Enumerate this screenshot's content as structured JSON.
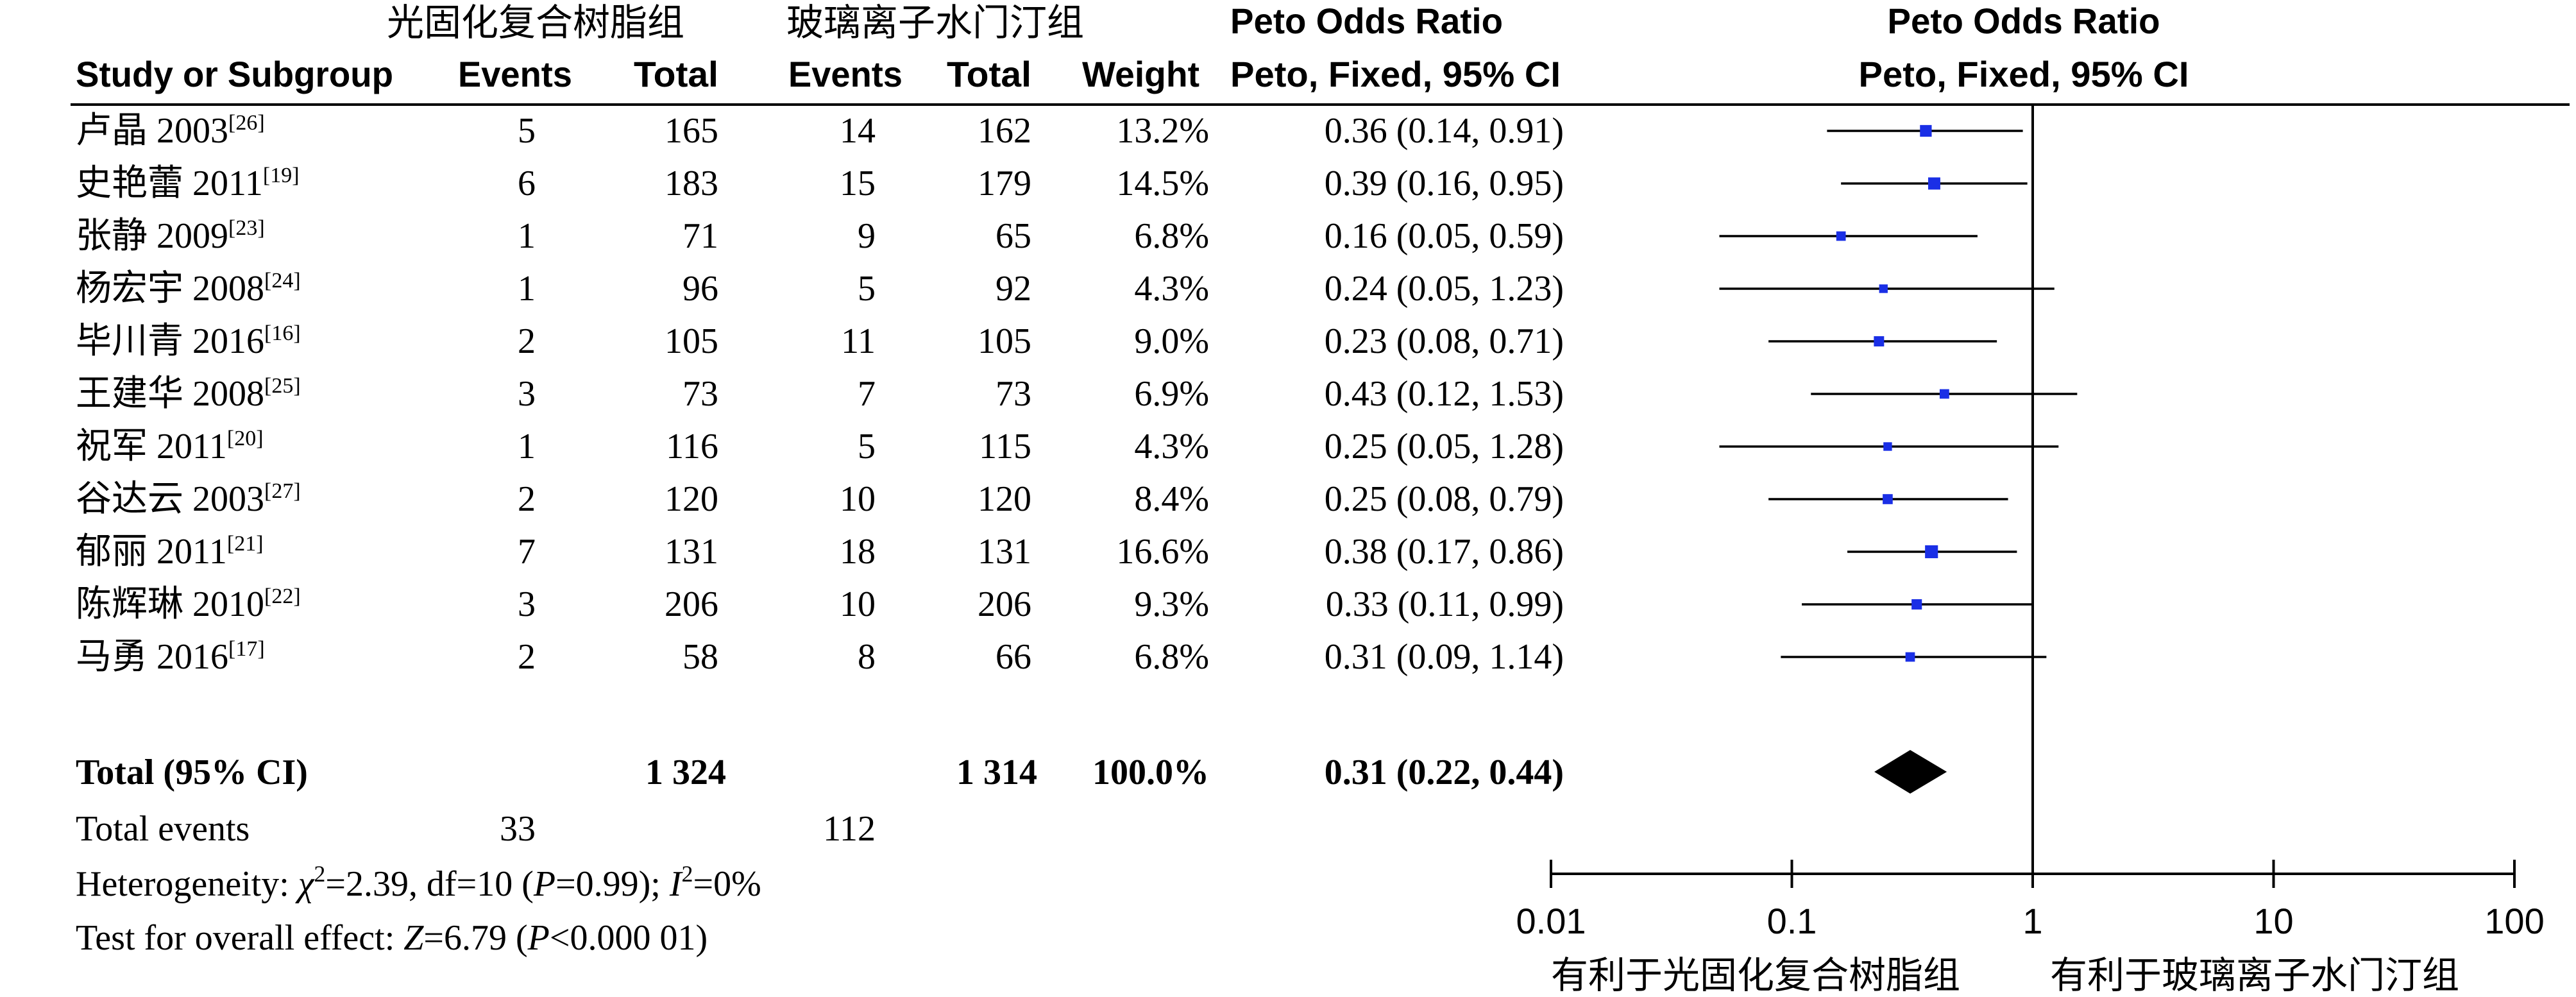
{
  "headers": {
    "group1": "光固化复合树脂组",
    "group2": "玻璃离子水门汀组",
    "or_title": "Peto Odds Ratio",
    "or_sub": "Peto, Fixed, 95% CI",
    "plot_title": "Peto Odds Ratio",
    "plot_sub": "Peto, Fixed, 95% CI",
    "study": "Study or Subgroup",
    "events1": "Events",
    "total1": "Total",
    "events2": "Events",
    "total2": "Total",
    "weight": "Weight"
  },
  "total_row": {
    "label": "Total (95% CI)",
    "total1": "1 324",
    "total2": "1 314",
    "weight": "100.0%",
    "ci_text": "0.31 (0.22, 0.44)"
  },
  "total_events": {
    "label": "Total events",
    "events1": "33",
    "events2": "112"
  },
  "heterogeneity": {
    "p1": "Heterogeneity: ",
    "chi": "χ",
    "chi_sup": "2",
    "p2": "=2.39, df=10 (",
    "P": "P",
    "p3": "=0.99); ",
    "I": "I",
    "I_sup": "2",
    "p4": "=0%"
  },
  "overall": {
    "p1": "Test for overall effect: ",
    "Z": "Z",
    "p2": "=6.79 (",
    "P": "P",
    "p3": "<0.000 01)"
  },
  "axis_labels": {
    "left": "有利于光固化复合树脂组",
    "right": "有利于玻璃离子水门汀组"
  },
  "chart_data": {
    "type": "forest",
    "scale": "log",
    "xlim": [
      0.01,
      100
    ],
    "ticks": [
      {
        "value": 0.01,
        "label": "0.01"
      },
      {
        "value": 0.1,
        "label": "0.1"
      },
      {
        "value": 1,
        "label": "1"
      },
      {
        "value": 10,
        "label": "10"
      },
      {
        "value": 100,
        "label": "100"
      }
    ],
    "studies": [
      {
        "name": "卢晶 2003",
        "ref": "[26]",
        "events1": "5",
        "total1": "165",
        "events2": "14",
        "total2": "162",
        "weight_label": "13.2%",
        "or": 0.36,
        "lo": 0.14,
        "hi": 0.91,
        "ci_text": "0.36 (0.14, 0.91)"
      },
      {
        "name": "史艳蕾 2011",
        "ref": "[19]",
        "events1": "6",
        "total1": "183",
        "events2": "15",
        "total2": "179",
        "weight_label": "14.5%",
        "or": 0.39,
        "lo": 0.16,
        "hi": 0.95,
        "ci_text": "0.39 (0.16, 0.95)"
      },
      {
        "name": "张静 2009",
        "ref": "[23]",
        "events1": "1",
        "total1": "71",
        "events2": "9",
        "total2": "65",
        "weight_label": "6.8%",
        "or": 0.16,
        "lo": 0.05,
        "hi": 0.59,
        "ci_text": "0.16 (0.05, 0.59)"
      },
      {
        "name": "杨宏宇 2008",
        "ref": "[24]",
        "events1": "1",
        "total1": "96",
        "events2": "5",
        "total2": "92",
        "weight_label": "4.3%",
        "or": 0.24,
        "lo": 0.05,
        "hi": 1.23,
        "ci_text": "0.24 (0.05, 1.23)"
      },
      {
        "name": "毕川青 2016",
        "ref": "[16]",
        "events1": "2",
        "total1": "105",
        "events2": "11",
        "total2": "105",
        "weight_label": "9.0%",
        "or": 0.23,
        "lo": 0.08,
        "hi": 0.71,
        "ci_text": "0.23 (0.08, 0.71)"
      },
      {
        "name": "王建华 2008",
        "ref": "[25]",
        "events1": "3",
        "total1": "73",
        "events2": "7",
        "total2": "73",
        "weight_label": "6.9%",
        "or": 0.43,
        "lo": 0.12,
        "hi": 1.53,
        "ci_text": "0.43 (0.12, 1.53)"
      },
      {
        "name": "祝军 2011",
        "ref": "[20]",
        "events1": "1",
        "total1": "116",
        "events2": "5",
        "total2": "115",
        "weight_label": "4.3%",
        "or": 0.25,
        "lo": 0.05,
        "hi": 1.28,
        "ci_text": "0.25 (0.05, 1.28)"
      },
      {
        "name": "谷达云 2003",
        "ref": "[27]",
        "events1": "2",
        "total1": "120",
        "events2": "10",
        "total2": "120",
        "weight_label": "8.4%",
        "or": 0.25,
        "lo": 0.08,
        "hi": 0.79,
        "ci_text": "0.25 (0.08, 0.79)"
      },
      {
        "name": "郁丽 2011",
        "ref": "[21]",
        "events1": "7",
        "total1": "131",
        "events2": "18",
        "total2": "131",
        "weight_label": "16.6%",
        "or": 0.38,
        "lo": 0.17,
        "hi": 0.86,
        "ci_text": "0.38 (0.17, 0.86)"
      },
      {
        "name": "陈辉琳 2010",
        "ref": "[22]",
        "events1": "3",
        "total1": "206",
        "events2": "10",
        "total2": "206",
        "weight_label": "9.3%",
        "or": 0.33,
        "lo": 0.11,
        "hi": 0.99,
        "ci_text": "0.33 (0.11, 0.99)"
      },
      {
        "name": "马勇 2016",
        "ref": "[17]",
        "events1": "2",
        "total1": "58",
        "events2": "8",
        "total2": "66",
        "weight_label": "6.8%",
        "or": 0.31,
        "lo": 0.09,
        "hi": 1.14,
        "ci_text": "0.31 (0.09, 1.14)"
      }
    ],
    "pooled": {
      "or": 0.31,
      "lo": 0.22,
      "hi": 0.44
    },
    "marker_color": "#1a2fe6",
    "line_color": "#000000"
  }
}
